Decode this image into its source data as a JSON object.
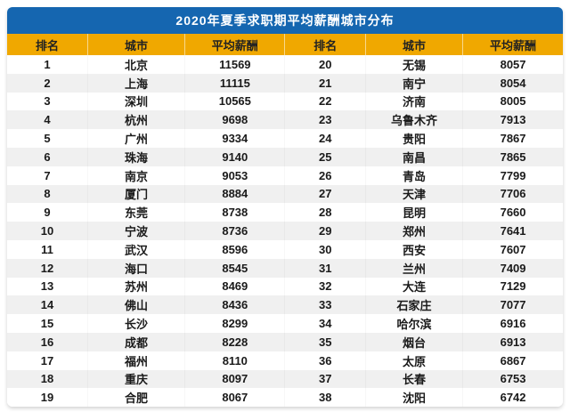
{
  "title": "2020年夏季求职期平均薪酬城市分布",
  "colors": {
    "title_bg": "#1566b0",
    "column_header_bg": "#f0a800",
    "row_alt_bg": "#f0f0f0"
  },
  "columns": [
    "排名",
    "城市",
    "平均薪酬",
    "排名",
    "城市",
    "平均薪酬"
  ],
  "rows": [
    [
      "1",
      "北京",
      "11569",
      "20",
      "无锡",
      "8057"
    ],
    [
      "2",
      "上海",
      "11115",
      "21",
      "南宁",
      "8054"
    ],
    [
      "3",
      "深圳",
      "10565",
      "22",
      "济南",
      "8005"
    ],
    [
      "4",
      "杭州",
      "9698",
      "23",
      "乌鲁木齐",
      "7913"
    ],
    [
      "5",
      "广州",
      "9334",
      "24",
      "贵阳",
      "7867"
    ],
    [
      "6",
      "珠海",
      "9140",
      "25",
      "南昌",
      "7865"
    ],
    [
      "7",
      "南京",
      "9053",
      "26",
      "青岛",
      "7799"
    ],
    [
      "8",
      "厦门",
      "8884",
      "27",
      "天津",
      "7706"
    ],
    [
      "9",
      "东莞",
      "8738",
      "28",
      "昆明",
      "7660"
    ],
    [
      "10",
      "宁波",
      "8736",
      "29",
      "郑州",
      "7641"
    ],
    [
      "11",
      "武汉",
      "8596",
      "30",
      "西安",
      "7607"
    ],
    [
      "12",
      "海口",
      "8545",
      "31",
      "兰州",
      "7409"
    ],
    [
      "13",
      "苏州",
      "8469",
      "32",
      "大连",
      "7129"
    ],
    [
      "14",
      "佛山",
      "8436",
      "33",
      "石家庄",
      "7077"
    ],
    [
      "15",
      "长沙",
      "8299",
      "34",
      "哈尔滨",
      "6916"
    ],
    [
      "16",
      "成都",
      "8228",
      "35",
      "烟台",
      "6913"
    ],
    [
      "17",
      "福州",
      "8110",
      "36",
      "太原",
      "6867"
    ],
    [
      "18",
      "重庆",
      "8097",
      "37",
      "长春",
      "6753"
    ],
    [
      "19",
      "合肥",
      "8067",
      "38",
      "沈阳",
      "6742"
    ]
  ],
  "chart_data": {
    "type": "table",
    "title": "2020年夏季求职期平均薪酬城市分布",
    "columns": [
      "排名",
      "城市",
      "平均薪酬"
    ],
    "rows": [
      [
        1,
        "北京",
        11569
      ],
      [
        2,
        "上海",
        11115
      ],
      [
        3,
        "深圳",
        10565
      ],
      [
        4,
        "杭州",
        9698
      ],
      [
        5,
        "广州",
        9334
      ],
      [
        6,
        "珠海",
        9140
      ],
      [
        7,
        "南京",
        9053
      ],
      [
        8,
        "厦门",
        8884
      ],
      [
        9,
        "东莞",
        8738
      ],
      [
        10,
        "宁波",
        8736
      ],
      [
        11,
        "武汉",
        8596
      ],
      [
        12,
        "海口",
        8545
      ],
      [
        13,
        "苏州",
        8469
      ],
      [
        14,
        "佛山",
        8436
      ],
      [
        15,
        "长沙",
        8299
      ],
      [
        16,
        "成都",
        8228
      ],
      [
        17,
        "福州",
        8110
      ],
      [
        18,
        "重庆",
        8097
      ],
      [
        19,
        "合肥",
        8067
      ],
      [
        20,
        "无锡",
        8057
      ],
      [
        21,
        "南宁",
        8054
      ],
      [
        22,
        "济南",
        8005
      ],
      [
        23,
        "乌鲁木齐",
        7913
      ],
      [
        24,
        "贵阳",
        7867
      ],
      [
        25,
        "南昌",
        7865
      ],
      [
        26,
        "青岛",
        7799
      ],
      [
        27,
        "天津",
        7706
      ],
      [
        28,
        "昆明",
        7660
      ],
      [
        29,
        "郑州",
        7641
      ],
      [
        30,
        "西安",
        7607
      ],
      [
        31,
        "兰州",
        7409
      ],
      [
        32,
        "大连",
        7129
      ],
      [
        33,
        "石家庄",
        7077
      ],
      [
        34,
        "哈尔滨",
        6916
      ],
      [
        35,
        "烟台",
        6913
      ],
      [
        36,
        "太原",
        6867
      ],
      [
        37,
        "长春",
        6753
      ],
      [
        38,
        "沈阳",
        6742
      ]
    ]
  }
}
